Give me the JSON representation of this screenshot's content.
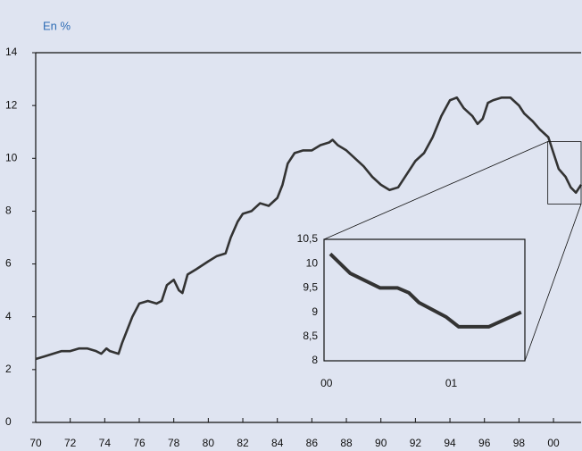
{
  "chart_data": [
    {
      "type": "line",
      "ylabel": "En %",
      "color": "#333333",
      "x": [
        1970,
        1970.5,
        1971,
        1971.5,
        1972,
        1972.5,
        1973,
        1973.5,
        1973.8,
        1974.1,
        1974.3,
        1974.8,
        1975,
        1975.3,
        1975.6,
        1976,
        1976.5,
        1977,
        1977.3,
        1977.6,
        1978,
        1978.3,
        1978.5,
        1978.8,
        1979.3,
        1980,
        1980.5,
        1981,
        1981.3,
        1981.7,
        1982,
        1982.5,
        1983,
        1983.5,
        1984,
        1984.3,
        1984.6,
        1985,
        1985.5,
        1986,
        1986.5,
        1987,
        1987.2,
        1987.5,
        1988,
        1988.5,
        1989,
        1989.5,
        1990,
        1990.5,
        1991,
        1991.5,
        1992,
        1992.5,
        1993,
        1993.5,
        1994,
        1994.4,
        1994.8,
        1995.3,
        1995.6,
        1995.9,
        1996.2,
        1996.5,
        1997,
        1997.5,
        1998,
        1998.3,
        1998.8,
        1999.2,
        1999.7,
        2000,
        2000.3,
        2000.7,
        2001,
        2001.3,
        2001.6
      ],
      "values": [
        2.4,
        2.5,
        2.6,
        2.7,
        2.7,
        2.8,
        2.8,
        2.7,
        2.6,
        2.8,
        2.7,
        2.6,
        3.0,
        3.5,
        4.0,
        4.5,
        4.6,
        4.5,
        4.6,
        5.2,
        5.4,
        5.0,
        4.9,
        5.6,
        5.8,
        6.1,
        6.3,
        6.4,
        7.0,
        7.6,
        7.9,
        8.0,
        8.3,
        8.2,
        8.5,
        9.0,
        9.8,
        10.2,
        10.3,
        10.3,
        10.5,
        10.6,
        10.7,
        10.5,
        10.3,
        10.0,
        9.7,
        9.3,
        9.0,
        8.8,
        8.9,
        9.4,
        9.9,
        10.2,
        10.8,
        11.6,
        12.2,
        12.3,
        11.9,
        11.6,
        11.3,
        11.5,
        12.1,
        12.2,
        12.3,
        12.3,
        12.0,
        11.7,
        11.4,
        11.1,
        10.8,
        10.2,
        9.6,
        9.3,
        8.9,
        8.7,
        9.0
      ],
      "xlim": [
        1970,
        2001.6
      ],
      "ylim": [
        0,
        14
      ],
      "xticks": [
        {
          "value": 1970,
          "label": "70"
        },
        {
          "value": 1972,
          "label": "72"
        },
        {
          "value": 1974,
          "label": "74"
        },
        {
          "value": 1976,
          "label": "76"
        },
        {
          "value": 1978,
          "label": "78"
        },
        {
          "value": 1980,
          "label": "80"
        },
        {
          "value": 1982,
          "label": "82"
        },
        {
          "value": 1984,
          "label": "84"
        },
        {
          "value": 1986,
          "label": "86"
        },
        {
          "value": 1988,
          "label": "88"
        },
        {
          "value": 1990,
          "label": "90"
        },
        {
          "value": 1992,
          "label": "92"
        },
        {
          "value": 1994,
          "label": "94"
        },
        {
          "value": 1996,
          "label": "96"
        },
        {
          "value": 1998,
          "label": "98"
        },
        {
          "value": 2000,
          "label": "00"
        }
      ],
      "yticks": [
        0,
        2,
        4,
        6,
        8,
        10,
        12,
        14
      ]
    },
    {
      "type": "line",
      "color": "#333333",
      "x": [
        2000.03,
        2000.19,
        2000.43,
        2000.57,
        2000.66,
        2000.74,
        2000.96,
        2001.06,
        2001.3,
        2001.56
      ],
      "values": [
        10.2,
        9.8,
        9.5,
        9.5,
        9.4,
        9.2,
        8.9,
        8.7,
        8.7,
        9.0
      ],
      "xlim": [
        1999.98,
        2001.59
      ],
      "ylim": [
        8,
        10.5
      ],
      "xticks": [
        {
          "value": 2000,
          "label": "00"
        },
        {
          "value": 2001,
          "label": "01"
        }
      ],
      "yticks": [
        {
          "value": 10.5,
          "label": "10,5"
        },
        10,
        {
          "value": 9.5,
          "label": "9,5"
        },
        9,
        {
          "value": 8.5,
          "label": "8,5"
        },
        8
      ]
    }
  ]
}
